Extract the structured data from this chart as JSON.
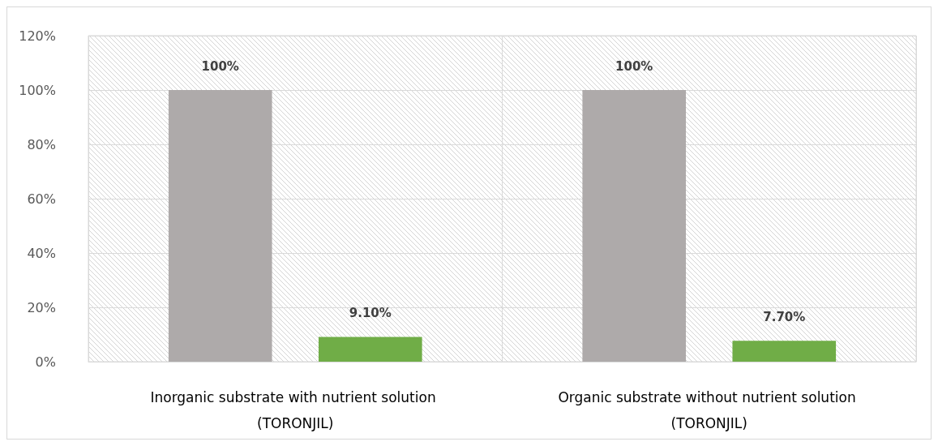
{
  "chart_data": {
    "type": "bar",
    "categories": [
      "Inorganic substrate with nutrient solution (TORONJIL)",
      "Organic substrate without nutrient solution (TORONJIL)"
    ],
    "series": [
      {
        "color": "#aeaaaa",
        "values": [
          100,
          100
        ],
        "value_labels": [
          "100%",
          "100%"
        ]
      },
      {
        "color": "#70ad47",
        "values": [
          9.1,
          7.7
        ],
        "value_labels": [
          "9.10%",
          "7.70%"
        ]
      }
    ],
    "ylim": [
      0,
      120
    ],
    "yticks": [
      {
        "value": 0,
        "label": "0%"
      },
      {
        "value": 20,
        "label": "20%"
      },
      {
        "value": 40,
        "label": "40%"
      },
      {
        "value": 60,
        "label": "60%"
      },
      {
        "value": 80,
        "label": "80%"
      },
      {
        "value": 100,
        "label": "100%"
      },
      {
        "value": 120,
        "label": "120%"
      }
    ],
    "grid": true
  }
}
